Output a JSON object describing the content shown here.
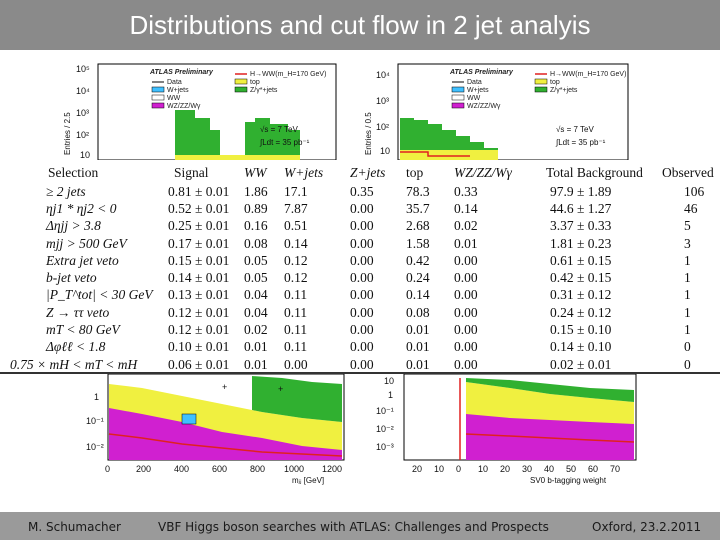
{
  "title": "Distributions and cut flow in 2 jet analyis",
  "footer": {
    "author": "M. Schumacher",
    "talk": "VBF Higgs boson searches with ATLAS: Challenges and Prospects",
    "place_date": "Oxford, 23.2.2011"
  },
  "top_left_plot": {
    "ylabel": "Entries / 2.5",
    "y_ticks": [
      "10⁵",
      "10⁴",
      "10³",
      "10²",
      "10"
    ],
    "atlas_label": "ATLAS Preliminary",
    "legend_left": [
      "Data",
      "W+jets",
      "WW",
      "WZ/ZZ/Wγ"
    ],
    "legend_right": [
      "H→WW(m_H=170 GeV)",
      "top",
      "Z/γ*+jets"
    ],
    "energy": "√s = 7 TeV",
    "lumi": "∫Ldt = 35 pb⁻¹"
  },
  "top_right_plot": {
    "ylabel": "Entries / 0.5",
    "y_ticks": [
      "10⁴",
      "10³",
      "10²",
      "10"
    ],
    "atlas_label": "ATLAS Preliminary",
    "legend_left": [
      "Data",
      "W+jets",
      "WW",
      "WZ/ZZ/Wγ"
    ],
    "legend_right": [
      "H→WW(m_H=170 GeV)",
      "top",
      "Z/γ*+jets"
    ],
    "energy": "√s = 7 TeV",
    "lumi": "∫Ldt = 35 pb⁻¹"
  },
  "bottom_left_plot": {
    "y_ticks": [
      "1",
      "10⁻¹",
      "10⁻²"
    ],
    "x_ticks": [
      "0",
      "200",
      "400",
      "600",
      "800",
      "1000",
      "1200"
    ],
    "xlabel": "mⱼⱼ [GeV]"
  },
  "bottom_right_plot": {
    "y_ticks": [
      "10",
      "1",
      "10⁻¹",
      "10⁻²",
      "10⁻³"
    ],
    "x_ticks_left": [
      "20",
      "10",
      "0"
    ],
    "x_ticks_right": [
      "10",
      "20",
      "30",
      "40",
      "50",
      "60",
      "70"
    ],
    "xlabel": "SV0 b-tagging weight"
  },
  "table": {
    "headers": [
      "Selection",
      "Signal",
      "WW",
      "W+jets",
      "Z+jets",
      "top",
      "WZ/ZZ/Wγ",
      "Total Background",
      "Observed"
    ],
    "rows": [
      [
        "≥ 2 jets",
        "0.81 ± 0.01",
        "1.86",
        "17.1",
        "0.35",
        "78.3",
        "0.33",
        "97.9 ± 1.89",
        "106"
      ],
      [
        "ηj1 * ηj2 < 0",
        "0.52 ± 0.01",
        "0.89",
        "7.87",
        "0.00",
        "35.7",
        "0.14",
        "44.6 ± 1.27",
        "46"
      ],
      [
        "Δηjj > 3.8",
        "0.25 ± 0.01",
        "0.16",
        "0.51",
        "0.00",
        "2.68",
        "0.02",
        "3.37 ± 0.33",
        "5"
      ],
      [
        "mjj > 500 GeV",
        "0.17 ± 0.01",
        "0.08",
        "0.14",
        "0.00",
        "1.58",
        "0.01",
        "1.81 ± 0.23",
        "3"
      ],
      [
        "Extra jet veto",
        "0.15 ± 0.01",
        "0.05",
        "0.12",
        "0.00",
        "0.42",
        "0.00",
        "0.61 ± 0.15",
        "1"
      ],
      [
        "b-jet veto",
        "0.14 ± 0.01",
        "0.05",
        "0.12",
        "0.00",
        "0.24",
        "0.00",
        "0.42 ± 0.15",
        "1"
      ],
      [
        "|P_T^tot| < 30 GeV",
        "0.13 ± 0.01",
        "0.04",
        "0.11",
        "0.00",
        "0.14",
        "0.00",
        "0.31 ± 0.12",
        "1"
      ],
      [
        "Z → ττ veto",
        "0.12 ± 0.01",
        "0.04",
        "0.11",
        "0.00",
        "0.08",
        "0.00",
        "0.24 ± 0.12",
        "1"
      ],
      [
        "mT < 80 GeV",
        "0.12 ± 0.01",
        "0.02",
        "0.11",
        "0.00",
        "0.01",
        "0.00",
        "0.15 ± 0.10",
        "1"
      ],
      [
        "Δφℓℓ < 1.8",
        "0.10 ± 0.01",
        "0.01",
        "0.11",
        "0.00",
        "0.01",
        "0.00",
        "0.14 ± 0.10",
        "0"
      ],
      [
        "0.75 × mH < mT < mH",
        "0.06 ± 0.01",
        "0.01",
        "0.00",
        "0.00",
        "0.01",
        "0.00",
        "0.02 ± 0.01",
        "0"
      ]
    ]
  },
  "colors": {
    "data": "#000000",
    "w_jets": "#40c0ff",
    "top": "#f0f040",
    "ww": "#ffffff",
    "z_jets": "#30b030",
    "wz_zz": "#d020d0",
    "signal": "#e02020"
  }
}
